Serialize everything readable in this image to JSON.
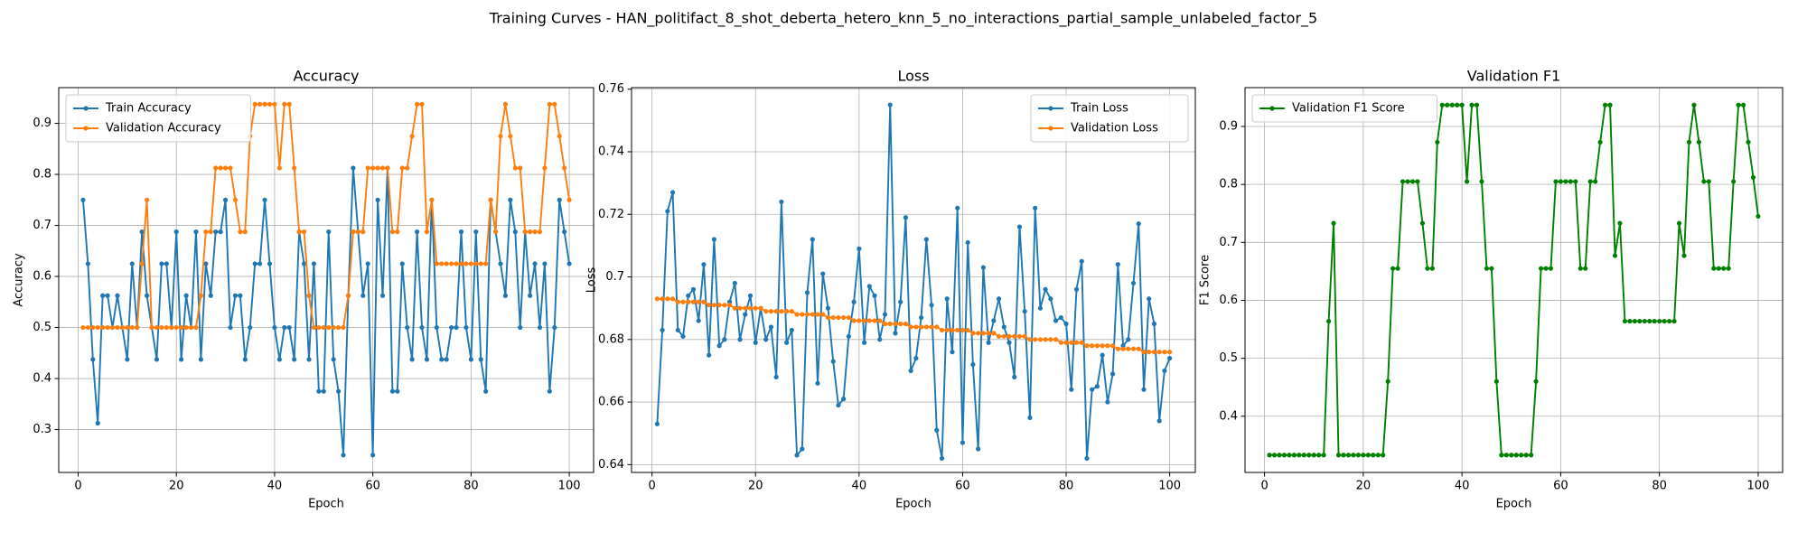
{
  "title": "Training Curves - HAN_politifact_8_shot_deberta_hetero_knn_5_no_interactions_partial_sample_unlabeled_factor_5",
  "chart_data": [
    {
      "type": "line",
      "title": "Accuracy",
      "xlabel": "Epoch",
      "ylabel": "Accuracy",
      "legend": "upper left",
      "grid": true,
      "x": [
        1,
        2,
        3,
        4,
        5,
        6,
        7,
        8,
        9,
        10,
        11,
        12,
        13,
        14,
        15,
        16,
        17,
        18,
        19,
        20,
        21,
        22,
        23,
        24,
        25,
        26,
        27,
        28,
        29,
        30,
        31,
        32,
        33,
        34,
        35,
        36,
        37,
        38,
        39,
        40,
        41,
        42,
        43,
        44,
        45,
        46,
        47,
        48,
        49,
        50,
        51,
        52,
        53,
        54,
        55,
        56,
        57,
        58,
        59,
        60,
        61,
        62,
        63,
        64,
        65,
        66,
        67,
        68,
        69,
        70,
        71,
        72,
        73,
        74,
        75,
        76,
        77,
        78,
        79,
        80,
        81,
        82,
        83,
        84,
        85,
        86,
        87,
        88,
        89,
        90,
        91,
        92,
        93,
        94,
        95,
        96,
        97,
        98,
        99,
        100
      ],
      "xlim": [
        -3.95,
        104.95
      ],
      "xticks": [
        0,
        20,
        40,
        60,
        80,
        100
      ],
      "ylim": [
        0.216,
        0.97
      ],
      "yticks": [
        0.3,
        0.4,
        0.5,
        0.6,
        0.7,
        0.8,
        0.9
      ],
      "series": [
        {
          "name": "Train Accuracy",
          "color": "#1f77b4",
          "values": [
            0.75,
            0.625,
            0.4375,
            0.3125,
            0.5625,
            0.5625,
            0.5,
            0.5625,
            0.5,
            0.4375,
            0.625,
            0.5,
            0.6875,
            0.5625,
            0.5,
            0.4375,
            0.625,
            0.625,
            0.5,
            0.6875,
            0.4375,
            0.5625,
            0.5,
            0.6875,
            0.4375,
            0.625,
            0.5625,
            0.6875,
            0.6875,
            0.75,
            0.5,
            0.5625,
            0.5625,
            0.4375,
            0.5,
            0.625,
            0.625,
            0.75,
            0.625,
            0.5,
            0.4375,
            0.5,
            0.5,
            0.4375,
            0.6875,
            0.625,
            0.4375,
            0.625,
            0.375,
            0.375,
            0.6875,
            0.4375,
            0.375,
            0.25,
            0.5625,
            0.8125,
            0.6875,
            0.5625,
            0.625,
            0.25,
            0.75,
            0.5625,
            0.8125,
            0.375,
            0.375,
            0.625,
            0.5,
            0.4375,
            0.6875,
            0.5,
            0.4375,
            0.75,
            0.5,
            0.4375,
            0.4375,
            0.5,
            0.5,
            0.6875,
            0.5,
            0.4375,
            0.6875,
            0.4375,
            0.375,
            0.75,
            0.6875,
            0.625,
            0.5625,
            0.75,
            0.6875,
            0.5,
            0.6875,
            0.5625,
            0.625,
            0.5,
            0.625,
            0.375,
            0.5,
            0.75,
            0.6875,
            0.625
          ]
        },
        {
          "name": "Validation Accuracy",
          "color": "#ff7f0e",
          "values": [
            0.5,
            0.5,
            0.5,
            0.5,
            0.5,
            0.5,
            0.5,
            0.5,
            0.5,
            0.5,
            0.5,
            0.5,
            0.625,
            0.75,
            0.5,
            0.5,
            0.5,
            0.5,
            0.5,
            0.5,
            0.5,
            0.5,
            0.5,
            0.5,
            0.5625,
            0.6875,
            0.6875,
            0.8125,
            0.8125,
            0.8125,
            0.8125,
            0.75,
            0.6875,
            0.6875,
            0.875,
            0.9375,
            0.9375,
            0.9375,
            0.9375,
            0.9375,
            0.8125,
            0.9375,
            0.9375,
            0.8125,
            0.6875,
            0.6875,
            0.5625,
            0.5,
            0.5,
            0.5,
            0.5,
            0.5,
            0.5,
            0.5,
            0.5625,
            0.6875,
            0.6875,
            0.6875,
            0.8125,
            0.8125,
            0.8125,
            0.8125,
            0.8125,
            0.6875,
            0.6875,
            0.8125,
            0.8125,
            0.875,
            0.9375,
            0.9375,
            0.6875,
            0.75,
            0.625,
            0.625,
            0.625,
            0.625,
            0.625,
            0.625,
            0.625,
            0.625,
            0.625,
            0.625,
            0.625,
            0.75,
            0.6875,
            0.875,
            0.9375,
            0.875,
            0.8125,
            0.8125,
            0.6875,
            0.6875,
            0.6875,
            0.6875,
            0.8125,
            0.9375,
            0.9375,
            0.875,
            0.8125,
            0.75
          ]
        }
      ]
    },
    {
      "type": "line",
      "title": "Loss",
      "xlabel": "Epoch",
      "ylabel": "Loss",
      "legend": "upper right",
      "grid": true,
      "x": [
        1,
        2,
        3,
        4,
        5,
        6,
        7,
        8,
        9,
        10,
        11,
        12,
        13,
        14,
        15,
        16,
        17,
        18,
        19,
        20,
        21,
        22,
        23,
        24,
        25,
        26,
        27,
        28,
        29,
        30,
        31,
        32,
        33,
        34,
        35,
        36,
        37,
        38,
        39,
        40,
        41,
        42,
        43,
        44,
        45,
        46,
        47,
        48,
        49,
        50,
        51,
        52,
        53,
        54,
        55,
        56,
        57,
        58,
        59,
        60,
        61,
        62,
        63,
        64,
        65,
        66,
        67,
        68,
        69,
        70,
        71,
        72,
        73,
        74,
        75,
        76,
        77,
        78,
        79,
        80,
        81,
        82,
        83,
        84,
        85,
        86,
        87,
        88,
        89,
        90,
        91,
        92,
        93,
        94,
        95,
        96,
        97,
        98,
        99,
        100
      ],
      "xlim": [
        -3.95,
        104.95
      ],
      "xticks": [
        0,
        20,
        40,
        60,
        80,
        100
      ],
      "ylim": [
        0.6375,
        0.7605
      ],
      "yticks": [
        0.64,
        0.66,
        0.68,
        0.7,
        0.72,
        0.74,
        0.76
      ],
      "series": [
        {
          "name": "Train Loss",
          "color": "#1f77b4",
          "values": [
            0.653,
            0.683,
            0.721,
            0.727,
            0.683,
            0.681,
            0.694,
            0.696,
            0.686,
            0.704,
            0.675,
            0.712,
            0.678,
            0.68,
            0.692,
            0.698,
            0.68,
            0.688,
            0.694,
            0.679,
            0.69,
            0.68,
            0.684,
            0.668,
            0.724,
            0.679,
            0.683,
            0.643,
            0.645,
            0.695,
            0.712,
            0.666,
            0.701,
            0.69,
            0.673,
            0.659,
            0.661,
            0.681,
            0.692,
            0.709,
            0.679,
            0.697,
            0.694,
            0.68,
            0.688,
            0.755,
            0.682,
            0.692,
            0.719,
            0.67,
            0.674,
            0.687,
            0.712,
            0.691,
            0.651,
            0.642,
            0.693,
            0.676,
            0.722,
            0.647,
            0.711,
            0.672,
            0.645,
            0.703,
            0.679,
            0.686,
            0.693,
            0.684,
            0.679,
            0.668,
            0.716,
            0.689,
            0.655,
            0.722,
            0.69,
            0.696,
            0.693,
            0.686,
            0.687,
            0.685,
            0.664,
            0.696,
            0.705,
            0.642,
            0.664,
            0.665,
            0.675,
            0.66,
            0.669,
            0.704,
            0.678,
            0.68,
            0.698,
            0.717,
            0.664,
            0.693,
            0.685,
            0.654,
            0.67,
            0.674
          ]
        },
        {
          "name": "Validation Loss",
          "color": "#ff7f0e",
          "values": [
            0.693,
            0.693,
            0.693,
            0.693,
            0.692,
            0.692,
            0.692,
            0.692,
            0.692,
            0.692,
            0.691,
            0.691,
            0.691,
            0.691,
            0.691,
            0.69,
            0.69,
            0.69,
            0.69,
            0.69,
            0.69,
            0.689,
            0.689,
            0.689,
            0.689,
            0.689,
            0.689,
            0.688,
            0.688,
            0.688,
            0.688,
            0.688,
            0.688,
            0.687,
            0.687,
            0.687,
            0.687,
            0.687,
            0.686,
            0.686,
            0.686,
            0.686,
            0.686,
            0.686,
            0.685,
            0.685,
            0.685,
            0.685,
            0.685,
            0.684,
            0.684,
            0.684,
            0.684,
            0.684,
            0.684,
            0.683,
            0.683,
            0.683,
            0.683,
            0.683,
            0.683,
            0.682,
            0.682,
            0.682,
            0.682,
            0.682,
            0.681,
            0.681,
            0.681,
            0.681,
            0.681,
            0.681,
            0.68,
            0.68,
            0.68,
            0.68,
            0.68,
            0.68,
            0.679,
            0.679,
            0.679,
            0.679,
            0.679,
            0.678,
            0.678,
            0.678,
            0.678,
            0.678,
            0.678,
            0.677,
            0.677,
            0.677,
            0.677,
            0.677,
            0.676,
            0.676,
            0.676,
            0.676,
            0.676,
            0.676
          ]
        }
      ]
    },
    {
      "type": "line",
      "title": "Validation F1",
      "xlabel": "Epoch",
      "ylabel": "F1 Score",
      "legend": "upper left",
      "grid": true,
      "x": [
        1,
        2,
        3,
        4,
        5,
        6,
        7,
        8,
        9,
        10,
        11,
        12,
        13,
        14,
        15,
        16,
        17,
        18,
        19,
        20,
        21,
        22,
        23,
        24,
        25,
        26,
        27,
        28,
        29,
        30,
        31,
        32,
        33,
        34,
        35,
        36,
        37,
        38,
        39,
        40,
        41,
        42,
        43,
        44,
        45,
        46,
        47,
        48,
        49,
        50,
        51,
        52,
        53,
        54,
        55,
        56,
        57,
        58,
        59,
        60,
        61,
        62,
        63,
        64,
        65,
        66,
        67,
        68,
        69,
        70,
        71,
        72,
        73,
        74,
        75,
        76,
        77,
        78,
        79,
        80,
        81,
        82,
        83,
        84,
        85,
        86,
        87,
        88,
        89,
        90,
        91,
        92,
        93,
        94,
        95,
        96,
        97,
        98,
        99,
        100
      ],
      "xlim": [
        -3.95,
        104.95
      ],
      "xticks": [
        0,
        20,
        40,
        60,
        80,
        100
      ],
      "ylim": [
        0.303,
        0.967
      ],
      "yticks": [
        0.4,
        0.5,
        0.6,
        0.7,
        0.8,
        0.9
      ],
      "series": [
        {
          "name": "Validation F1 Score",
          "color": "#008000",
          "values": [
            0.333,
            0.333,
            0.333,
            0.333,
            0.333,
            0.333,
            0.333,
            0.333,
            0.333,
            0.333,
            0.333,
            0.333,
            0.564,
            0.733,
            0.333,
            0.333,
            0.333,
            0.333,
            0.333,
            0.333,
            0.333,
            0.333,
            0.333,
            0.333,
            0.46,
            0.655,
            0.655,
            0.805,
            0.805,
            0.805,
            0.805,
            0.733,
            0.655,
            0.655,
            0.873,
            0.937,
            0.937,
            0.937,
            0.937,
            0.937,
            0.805,
            0.937,
            0.937,
            0.805,
            0.655,
            0.655,
            0.46,
            0.333,
            0.333,
            0.333,
            0.333,
            0.333,
            0.333,
            0.333,
            0.46,
            0.655,
            0.655,
            0.655,
            0.805,
            0.805,
            0.805,
            0.805,
            0.805,
            0.655,
            0.655,
            0.805,
            0.805,
            0.873,
            0.937,
            0.937,
            0.677,
            0.733,
            0.564,
            0.564,
            0.564,
            0.564,
            0.564,
            0.564,
            0.564,
            0.564,
            0.564,
            0.564,
            0.564,
            0.733,
            0.677,
            0.873,
            0.937,
            0.873,
            0.805,
            0.805,
            0.655,
            0.655,
            0.655,
            0.655,
            0.805,
            0.937,
            0.937,
            0.873,
            0.812,
            0.745
          ]
        }
      ]
    }
  ]
}
